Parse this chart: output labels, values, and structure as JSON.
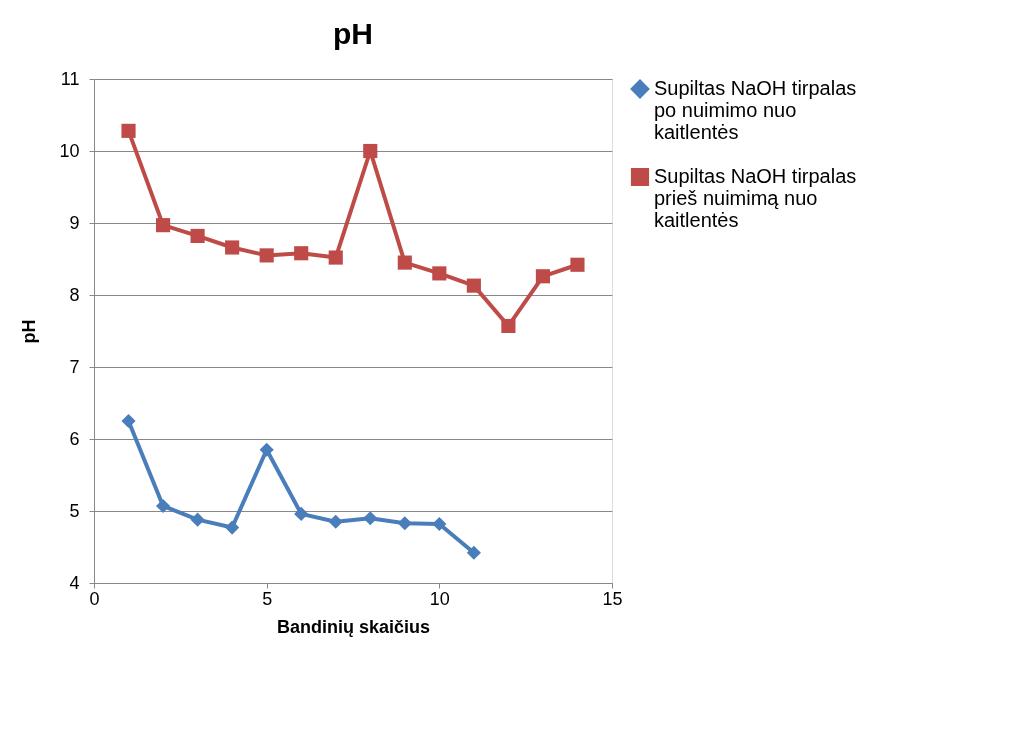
{
  "chart_data": {
    "type": "line",
    "title": "pH",
    "xlabel": "Bandinių skaičius",
    "ylabel": "pH",
    "xlim": [
      0,
      15
    ],
    "xticks": [
      0,
      5,
      10,
      15
    ],
    "ylim": [
      4,
      11
    ],
    "yticks": [
      4,
      5,
      6,
      7,
      8,
      9,
      10,
      11
    ],
    "grid": "y",
    "legend": "right",
    "line_style": "solid",
    "series": [
      {
        "name": "Supiltas NaOH tirpalas po nuimimo nuo kaitlentės",
        "color": "#4a7ebb",
        "marker": "diamond",
        "x": [
          1,
          2,
          3,
          4,
          5,
          6,
          7,
          8,
          9,
          10,
          11
        ],
        "values": [
          6.25,
          5.07,
          4.88,
          4.77,
          5.85,
          4.96,
          4.85,
          4.9,
          4.83,
          4.82,
          4.42
        ]
      },
      {
        "name": "Supiltas NaOH tirpalas prieš nuimimą nuo kaitlentės",
        "color": "#be4b48",
        "marker": "square",
        "x": [
          1,
          2,
          3,
          4,
          5,
          6,
          7,
          8,
          9,
          10,
          11,
          12,
          13,
          14
        ],
        "values": [
          10.28,
          8.97,
          8.82,
          8.66,
          8.55,
          8.58,
          8.52,
          10.0,
          8.45,
          8.3,
          8.13,
          7.57,
          8.26,
          8.42
        ]
      }
    ]
  }
}
